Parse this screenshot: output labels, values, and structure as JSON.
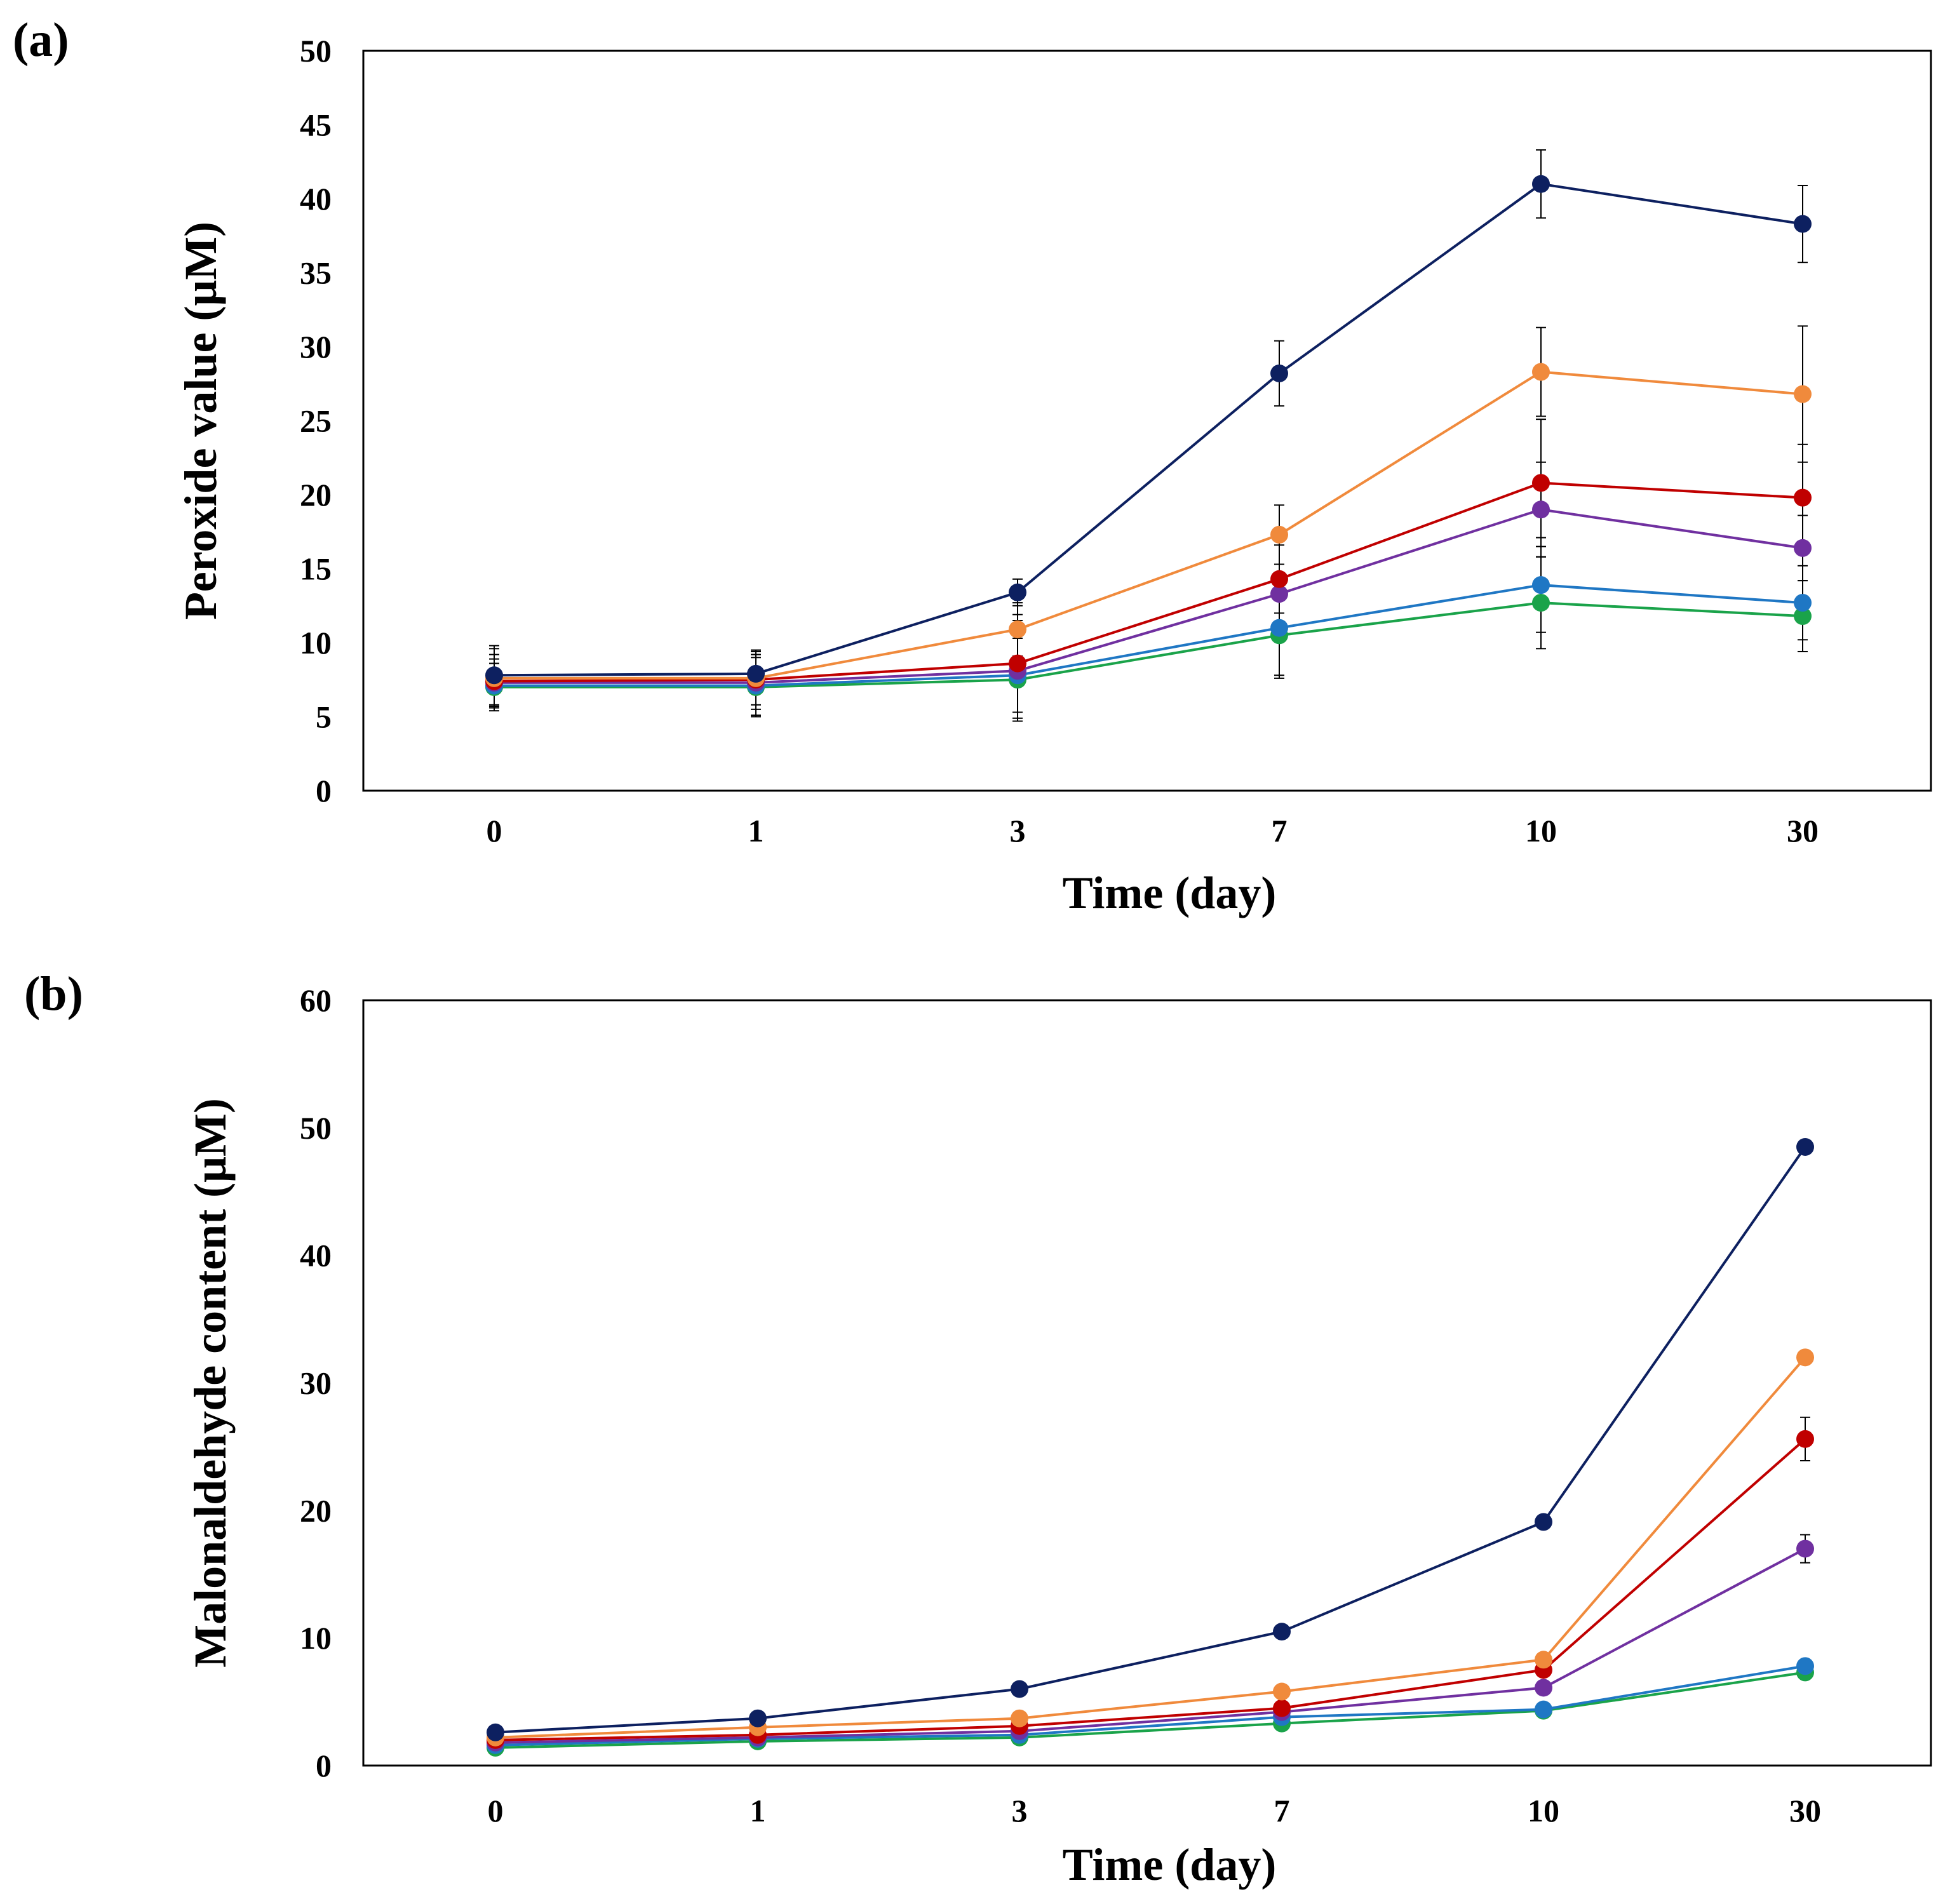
{
  "chart_data": [
    {
      "panel_label": "(a)",
      "type": "line",
      "xlabel": "Time (day)",
      "ylabel": "Peroxide value (μM)",
      "categories": [
        "0",
        "1",
        "3",
        "7",
        "10",
        "30"
      ],
      "ylim": [
        0,
        50
      ],
      "yticks": [
        "0",
        "5",
        "10",
        "15",
        "20",
        "25",
        "30",
        "35",
        "40",
        "45",
        "50"
      ],
      "grid": false,
      "series": [
        {
          "color": "#0d2060",
          "values": [
            7.8,
            7.9,
            13.4,
            28.2,
            41.0,
            38.3
          ],
          "errors": [
            2.0,
            1.3,
            0.9,
            2.2,
            2.3,
            2.6
          ]
        },
        {
          "color": "#f08a3c",
          "values": [
            7.6,
            7.6,
            10.9,
            17.3,
            28.3,
            26.8
          ],
          "errors": [
            2.0,
            1.8,
            1.8,
            2.0,
            3.0,
            4.6
          ]
        },
        {
          "color": "#c00000",
          "values": [
            7.4,
            7.5,
            8.6,
            14.3,
            20.8,
            19.8
          ],
          "errors": [
            1.8,
            2.0,
            3.3,
            2.3,
            4.3,
            3.6
          ]
        },
        {
          "color": "#7030a0",
          "values": [
            7.3,
            7.3,
            8.1,
            13.3,
            19.0,
            16.4
          ],
          "errors": [
            1.6,
            2.2,
            3.4,
            2.0,
            3.2,
            2.2
          ]
        },
        {
          "color": "#1f77c4",
          "values": [
            7.1,
            7.1,
            7.8,
            11.0,
            13.9,
            12.7
          ],
          "errors": [
            1.5,
            2.1,
            2.9,
            3.2,
            3.2,
            2.5
          ]
        },
        {
          "color": "#1aa34a",
          "values": [
            7.0,
            7.0,
            7.5,
            10.5,
            12.7,
            11.8
          ],
          "errors": [
            1.6,
            2.0,
            2.8,
            2.9,
            3.1,
            2.4
          ]
        }
      ]
    },
    {
      "panel_label": "(b)",
      "type": "line",
      "xlabel": "Time (day)",
      "ylabel": "Malonaldehyde content (μM)",
      "categories": [
        "0",
        "1",
        "3",
        "7",
        "10",
        "30"
      ],
      "ylim": [
        0,
        60
      ],
      "yticks": [
        "0",
        "10",
        "20",
        "30",
        "40",
        "50",
        "60"
      ],
      "grid": false,
      "series": [
        {
          "color": "#0d2060",
          "values": [
            2.6,
            3.7,
            6.0,
            10.5,
            19.1,
            48.5
          ],
          "errors": [
            0.2,
            0.2,
            0.2,
            0.3,
            0.3,
            0.5
          ]
        },
        {
          "color": "#f08a3c",
          "values": [
            2.2,
            3.0,
            3.7,
            5.8,
            8.3,
            32.0
          ],
          "errors": [
            0.2,
            0.2,
            0.2,
            0.2,
            0.3,
            0.4
          ]
        },
        {
          "color": "#c00000",
          "values": [
            2.0,
            2.4,
            3.1,
            4.5,
            7.5,
            25.6
          ],
          "errors": [
            0.2,
            0.2,
            0.2,
            0.2,
            0.3,
            1.7
          ]
        },
        {
          "color": "#7030a0",
          "values": [
            1.8,
            2.2,
            2.7,
            4.2,
            6.1,
            17.0
          ],
          "errors": [
            0.2,
            0.2,
            0.2,
            0.2,
            0.2,
            1.1
          ]
        },
        {
          "color": "#1f77c4",
          "values": [
            1.6,
            2.1,
            2.4,
            3.8,
            4.4,
            7.8
          ],
          "errors": [
            0.2,
            0.2,
            0.2,
            0.2,
            0.2,
            0.3
          ]
        },
        {
          "color": "#1aa34a",
          "values": [
            1.4,
            1.9,
            2.2,
            3.3,
            4.3,
            7.3
          ],
          "errors": [
            0.2,
            0.2,
            0.2,
            0.2,
            0.2,
            0.3
          ]
        }
      ]
    }
  ]
}
